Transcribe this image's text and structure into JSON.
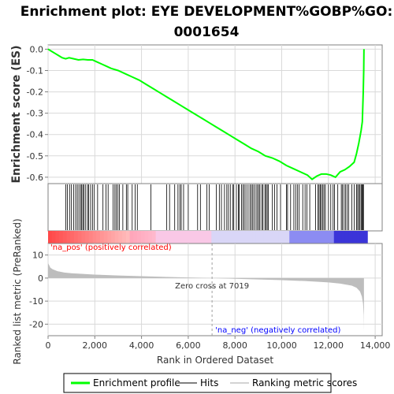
{
  "chart_data": {
    "type": "line",
    "title_line1": "Enrichment plot: EYE DEVELOPMENT%GOBP%GO:",
    "title_line2": "0001654",
    "top_panel": {
      "ylabel": "Enrichment score (ES)",
      "ylim": [
        -0.63,
        0.02
      ],
      "yticks": [
        0.0,
        -0.1,
        -0.2,
        -0.3,
        -0.4,
        -0.5,
        -0.6
      ],
      "ytick_labels": [
        "0.0",
        "-0.1",
        "-0.2",
        "-0.3",
        "-0.4",
        "-0.5",
        "-0.6"
      ],
      "series": [
        {
          "name": "Enrichment profile",
          "color": "#00ff00",
          "x": [
            0,
            150,
            300,
            450,
            600,
            750,
            900,
            1100,
            1300,
            1500,
            1700,
            1900,
            2100,
            2300,
            2500,
            2700,
            3000,
            3300,
            3600,
            3900,
            4200,
            4500,
            4800,
            5100,
            5400,
            5700,
            6000,
            6300,
            6600,
            6900,
            7200,
            7500,
            7800,
            8100,
            8400,
            8700,
            9000,
            9300,
            9600,
            9900,
            10200,
            10500,
            10800,
            11100,
            11300,
            11500,
            11700,
            11900,
            12100,
            12300,
            12500,
            12700,
            12900,
            13100,
            13200,
            13300,
            13400,
            13450,
            13490,
            13510,
            13520
          ],
          "y": [
            0.0,
            -0.01,
            -0.02,
            -0.03,
            -0.04,
            -0.045,
            -0.04,
            -0.045,
            -0.05,
            -0.048,
            -0.05,
            -0.05,
            -0.06,
            -0.07,
            -0.08,
            -0.09,
            -0.1,
            -0.115,
            -0.13,
            -0.145,
            -0.165,
            -0.185,
            -0.205,
            -0.225,
            -0.245,
            -0.265,
            -0.285,
            -0.305,
            -0.325,
            -0.345,
            -0.365,
            -0.385,
            -0.405,
            -0.425,
            -0.445,
            -0.465,
            -0.48,
            -0.5,
            -0.51,
            -0.525,
            -0.545,
            -0.56,
            -0.575,
            -0.59,
            -0.61,
            -0.595,
            -0.585,
            -0.585,
            -0.59,
            -0.6,
            -0.575,
            -0.565,
            -0.55,
            -0.53,
            -0.49,
            -0.44,
            -0.38,
            -0.34,
            -0.2,
            -0.1,
            0.0
          ]
        }
      ]
    },
    "hits": [
      760,
      830,
      920,
      1000,
      1100,
      1180,
      1250,
      1320,
      1390,
      1440,
      1490,
      1540,
      1610,
      1690,
      1740,
      1820,
      1900,
      1980,
      2120,
      2350,
      2480,
      2570,
      2780,
      2860,
      2920,
      2990,
      3050,
      3200,
      3350,
      3410,
      3600,
      3730,
      3820,
      4400,
      5080,
      5200,
      5420,
      5560,
      5640,
      5700,
      5800,
      6000,
      6400,
      6520,
      6800,
      6900,
      7200,
      7330,
      7420,
      7550,
      7650,
      7720,
      7800,
      7900,
      7950,
      8060,
      8150,
      8180,
      8280,
      8340,
      8400,
      8470,
      8560,
      8640,
      8700,
      8760,
      8820,
      8900,
      8960,
      9020,
      9070,
      9150,
      9200,
      9280,
      9330,
      9380,
      9430,
      9600,
      9700,
      9800,
      9950,
      10200,
      10250,
      10380,
      10520,
      10600,
      10680,
      10750,
      10900,
      11000,
      11080,
      11200,
      11450,
      11550,
      11600,
      11650,
      11700,
      11760,
      11810,
      11870,
      12000,
      12100,
      12200,
      12260,
      12400,
      12550,
      12600,
      12670,
      12730,
      12800,
      12870,
      13000,
      13100,
      13200,
      13250,
      13300,
      13350,
      13400,
      13440,
      13470,
      13500
    ],
    "rank_panel": {
      "ylabel": "Ranked list metric (PreRanked)",
      "xlabel": "Rank in Ordered Dataset",
      "xlim": [
        0,
        14300
      ],
      "ylim": [
        -25,
        15
      ],
      "yticks": [
        10,
        0,
        -10,
        -20
      ],
      "ytick_labels": [
        "10",
        "0",
        "-10",
        "-20"
      ],
      "xticks": [
        0,
        2000,
        4000,
        6000,
        8000,
        10000,
        12000,
        14000
      ],
      "xtick_labels": [
        "0",
        "2,000",
        "4,000",
        "6,000",
        "8,000",
        "10,000",
        "12,000",
        "14,000"
      ],
      "metric_x": [
        0,
        50,
        100,
        200,
        400,
        700,
        1000,
        2000,
        3000,
        4000,
        5000,
        6000,
        7019,
        8000,
        9000,
        10000,
        11000,
        12000,
        12500,
        13000,
        13200,
        13350,
        13430,
        13480,
        13510,
        13520
      ],
      "metric_y": [
        6.5,
        5.5,
        4.5,
        3.8,
        3.0,
        2.4,
        2.1,
        1.5,
        1.1,
        0.8,
        0.5,
        0.25,
        0.0,
        -0.3,
        -0.6,
        -0.9,
        -1.3,
        -1.9,
        -2.4,
        -3.3,
        -4.2,
        -5.8,
        -8.0,
        -11.0,
        -16.0,
        -23.0
      ],
      "zero_cross_x": 7019,
      "zero_cross_label": "Zero cross at 7019",
      "pos_label": "'na_pos' (positively correlated)",
      "neg_label": "'na_neg' (negatively correlated)",
      "pos_color": "#ff0000",
      "neg_color": "#0000ff",
      "fill_color": "#bdbdbd"
    },
    "legend": {
      "placement": "bottom",
      "items": [
        {
          "label": "Enrichment profile",
          "color": "#00ff00"
        },
        {
          "label": "Hits",
          "color": "#808080"
        },
        {
          "label": "Ranking metric scores",
          "color": "#d3d3d3"
        }
      ]
    },
    "colors": {
      "enrichment_line": "#00ff00",
      "hit_line": "#000000",
      "grid": "#d9d9d9",
      "axis": "#808080"
    }
  }
}
